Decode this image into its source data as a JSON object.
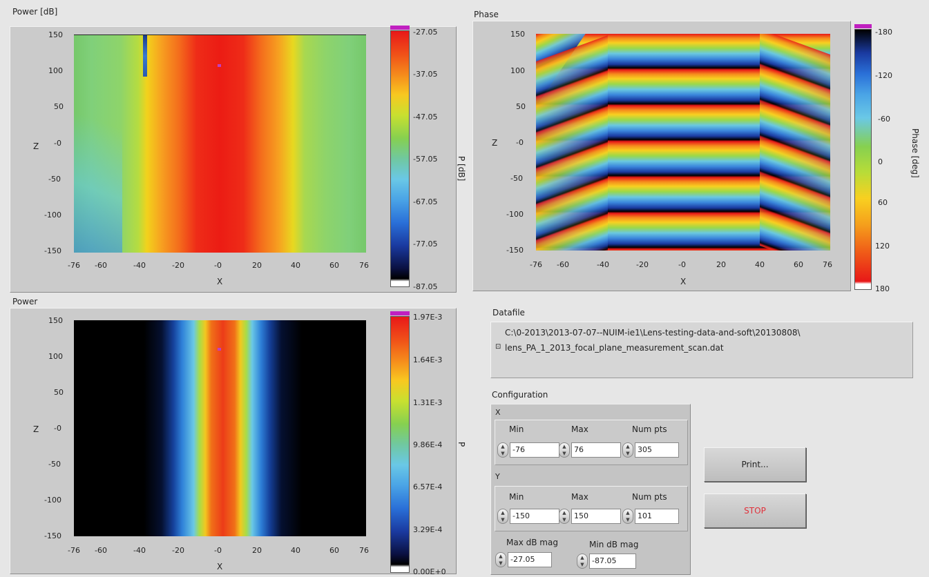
{
  "plots": {
    "power_db": {
      "title": "Power [dB]",
      "xlabel": "X",
      "ylabel": "Z",
      "xticks": [
        "-76",
        "-60",
        "-40",
        "-20",
        "-0",
        "20",
        "40",
        "60",
        "76"
      ],
      "yticks": [
        "150",
        "100",
        "50",
        "-0",
        "-50",
        "-100",
        "-150"
      ],
      "colorbar_label": "P [dB]",
      "colorbar_ticks": [
        "-27.05",
        "-37.05",
        "-47.05",
        "-57.05",
        "-67.05",
        "-77.05",
        "-87.05"
      ]
    },
    "phase": {
      "title": "Phase",
      "xlabel": "X",
      "ylabel": "Z",
      "xticks": [
        "-76",
        "-60",
        "-40",
        "-20",
        "-0",
        "20",
        "40",
        "60",
        "76"
      ],
      "yticks": [
        "150",
        "100",
        "50",
        "-0",
        "-50",
        "-100",
        "-150"
      ],
      "colorbar_label": "Phase [deg]",
      "colorbar_ticks": [
        "-180",
        "-120",
        "-60",
        "0",
        "60",
        "120",
        "180"
      ]
    },
    "power": {
      "title": "Power",
      "xlabel": "X",
      "ylabel": "Z",
      "xticks": [
        "-76",
        "-60",
        "-40",
        "-20",
        "-0",
        "20",
        "40",
        "60",
        "76"
      ],
      "yticks": [
        "150",
        "100",
        "50",
        "-0",
        "-50",
        "-100",
        "-150"
      ],
      "colorbar_label": "P",
      "colorbar_ticks": [
        "1.97E-3",
        "1.64E-3",
        "1.31E-3",
        "9.86E-4",
        "6.57E-4",
        "3.29E-4",
        "0.00E+0"
      ]
    }
  },
  "datafile": {
    "label": "Datafile",
    "line1": "C:\\0-2013\\2013-07-07--NUIM-ie1\\Lens-testing-data-and-soft\\20130808\\",
    "line2": "lens_PA_1_2013_focal_plane_measurement_scan.dat"
  },
  "config": {
    "label": "Configuration",
    "x": {
      "label": "X",
      "min_label": "Min",
      "max_label": "Max",
      "num_label": "Num pts",
      "min": "-76",
      "max": "76",
      "num": "305"
    },
    "y": {
      "label": "Y",
      "min_label": "Min",
      "max_label": "Max",
      "num_label": "Num pts",
      "min": "-150",
      "max": "150",
      "num": "101"
    },
    "max_db_label": "Max dB mag",
    "min_db_label": "Min dB mag",
    "max_db": "-27.05",
    "min_db": "-87.05"
  },
  "buttons": {
    "print": "Print...",
    "stop": "STOP"
  },
  "colors": {
    "stop_text": "#e0303a",
    "panel": "#cbcbcb",
    "background": "#e6e6e6"
  }
}
